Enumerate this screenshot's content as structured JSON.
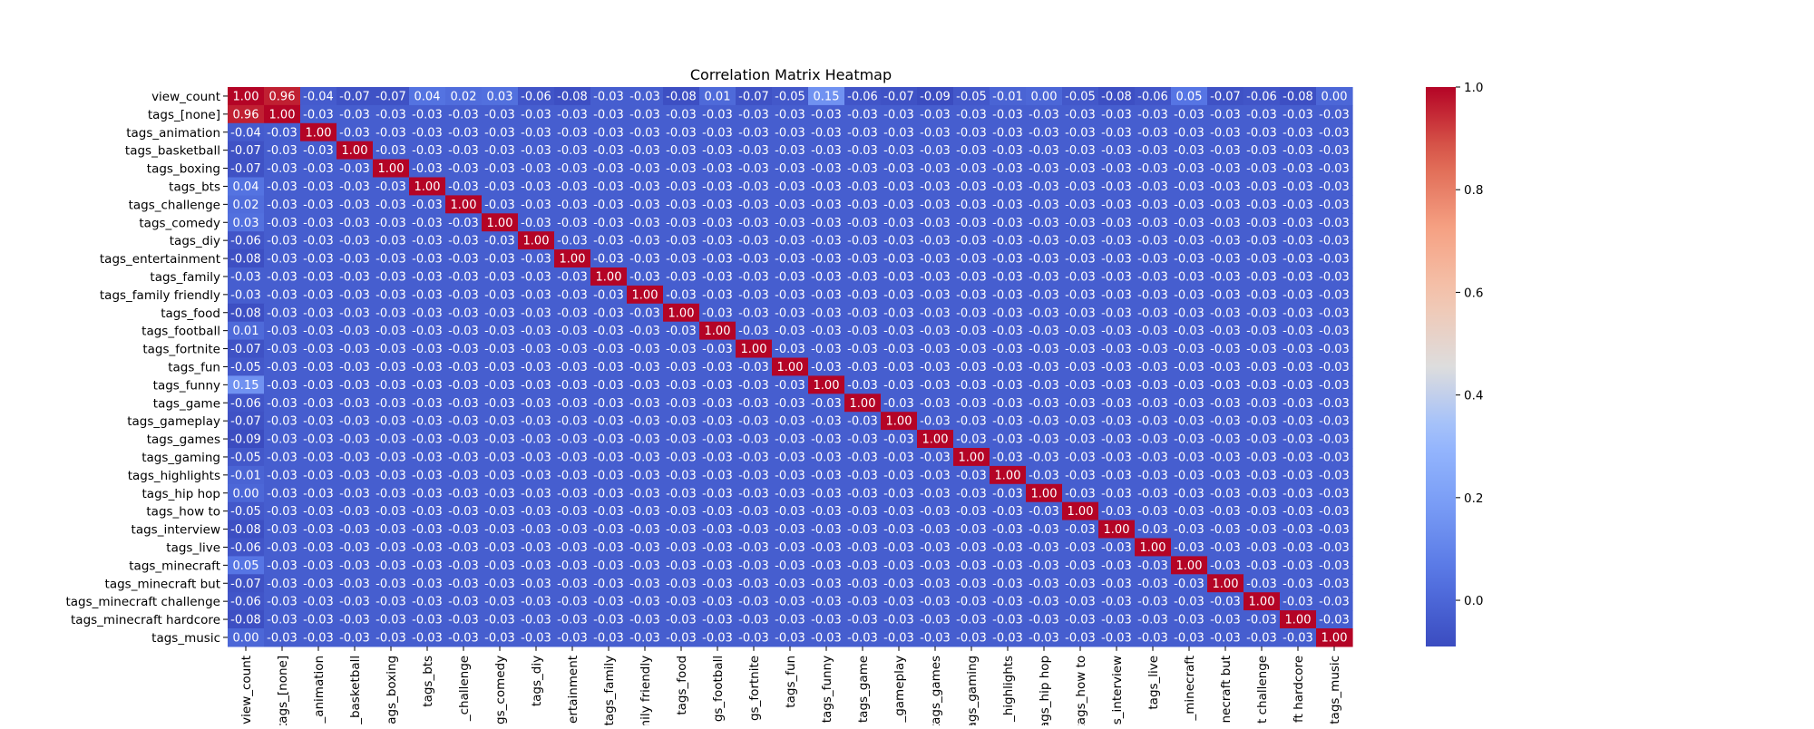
{
  "chart_data": {
    "type": "heatmap",
    "title": "Correlation Matrix Heatmap",
    "labels": [
      "view_count",
      "tags_[none]",
      "tags_animation",
      "tags_basketball",
      "tags_boxing",
      "tags_bts",
      "tags_challenge",
      "tags_comedy",
      "tags_diy",
      "tags_entertainment",
      "tags_family",
      "tags_family friendly",
      "tags_food",
      "tags_football",
      "tags_fortnite",
      "tags_fun",
      "tags_funny",
      "tags_game",
      "tags_gameplay",
      "tags_games",
      "tags_gaming",
      "tags_highlights",
      "tags_hip hop",
      "tags_how to",
      "tags_interview",
      "tags_live",
      "tags_minecraft",
      "tags_minecraft but",
      "tags_minecraft challenge",
      "tags_minecraft hardcore",
      "tags_music"
    ],
    "x_tick_labels_visible": [
      "view_count",
      "tags_[none]",
      "_animation",
      "_basketball",
      "ags_boxing",
      "tags_bts",
      "_challenge",
      "ags_comedy",
      "tags_diy",
      "ertainment",
      "tags_family",
      "mily friendly",
      "tags_food",
      "gs_football",
      "gs_fortnite",
      "tags_fun",
      "tags_funny",
      "tags_game",
      "_gameplay",
      "tags_games",
      "ags_gaming",
      "_highlights",
      "ags_hip hop",
      "tags_how to",
      "s_interview",
      "tags_live",
      "_minecraft",
      "necraft but",
      "t challenge",
      "ft hardcore",
      "tags_music"
    ],
    "view_count_corr": [
      1.0,
      0.96,
      -0.04,
      -0.07,
      -0.07,
      0.04,
      0.02,
      0.03,
      -0.06,
      -0.08,
      -0.03,
      -0.03,
      -0.08,
      0.01,
      -0.07,
      -0.05,
      0.15,
      -0.06,
      -0.07,
      -0.09,
      -0.05,
      -0.01,
      0.0,
      -0.05,
      -0.08,
      -0.06,
      0.05,
      -0.07,
      -0.06,
      -0.08,
      0.0
    ],
    "diagonal_value": 1.0,
    "off_diagonal_tag_value": -0.03,
    "colorbar": {
      "colormap": "coolwarm",
      "min": -0.09,
      "max": 1.0,
      "ticks": [
        0.0,
        0.2,
        0.4,
        0.6,
        0.8,
        1.0
      ],
      "tick_labels": [
        "0.0",
        "0.2",
        "0.4",
        "0.6",
        "0.8",
        "1.0"
      ]
    }
  }
}
